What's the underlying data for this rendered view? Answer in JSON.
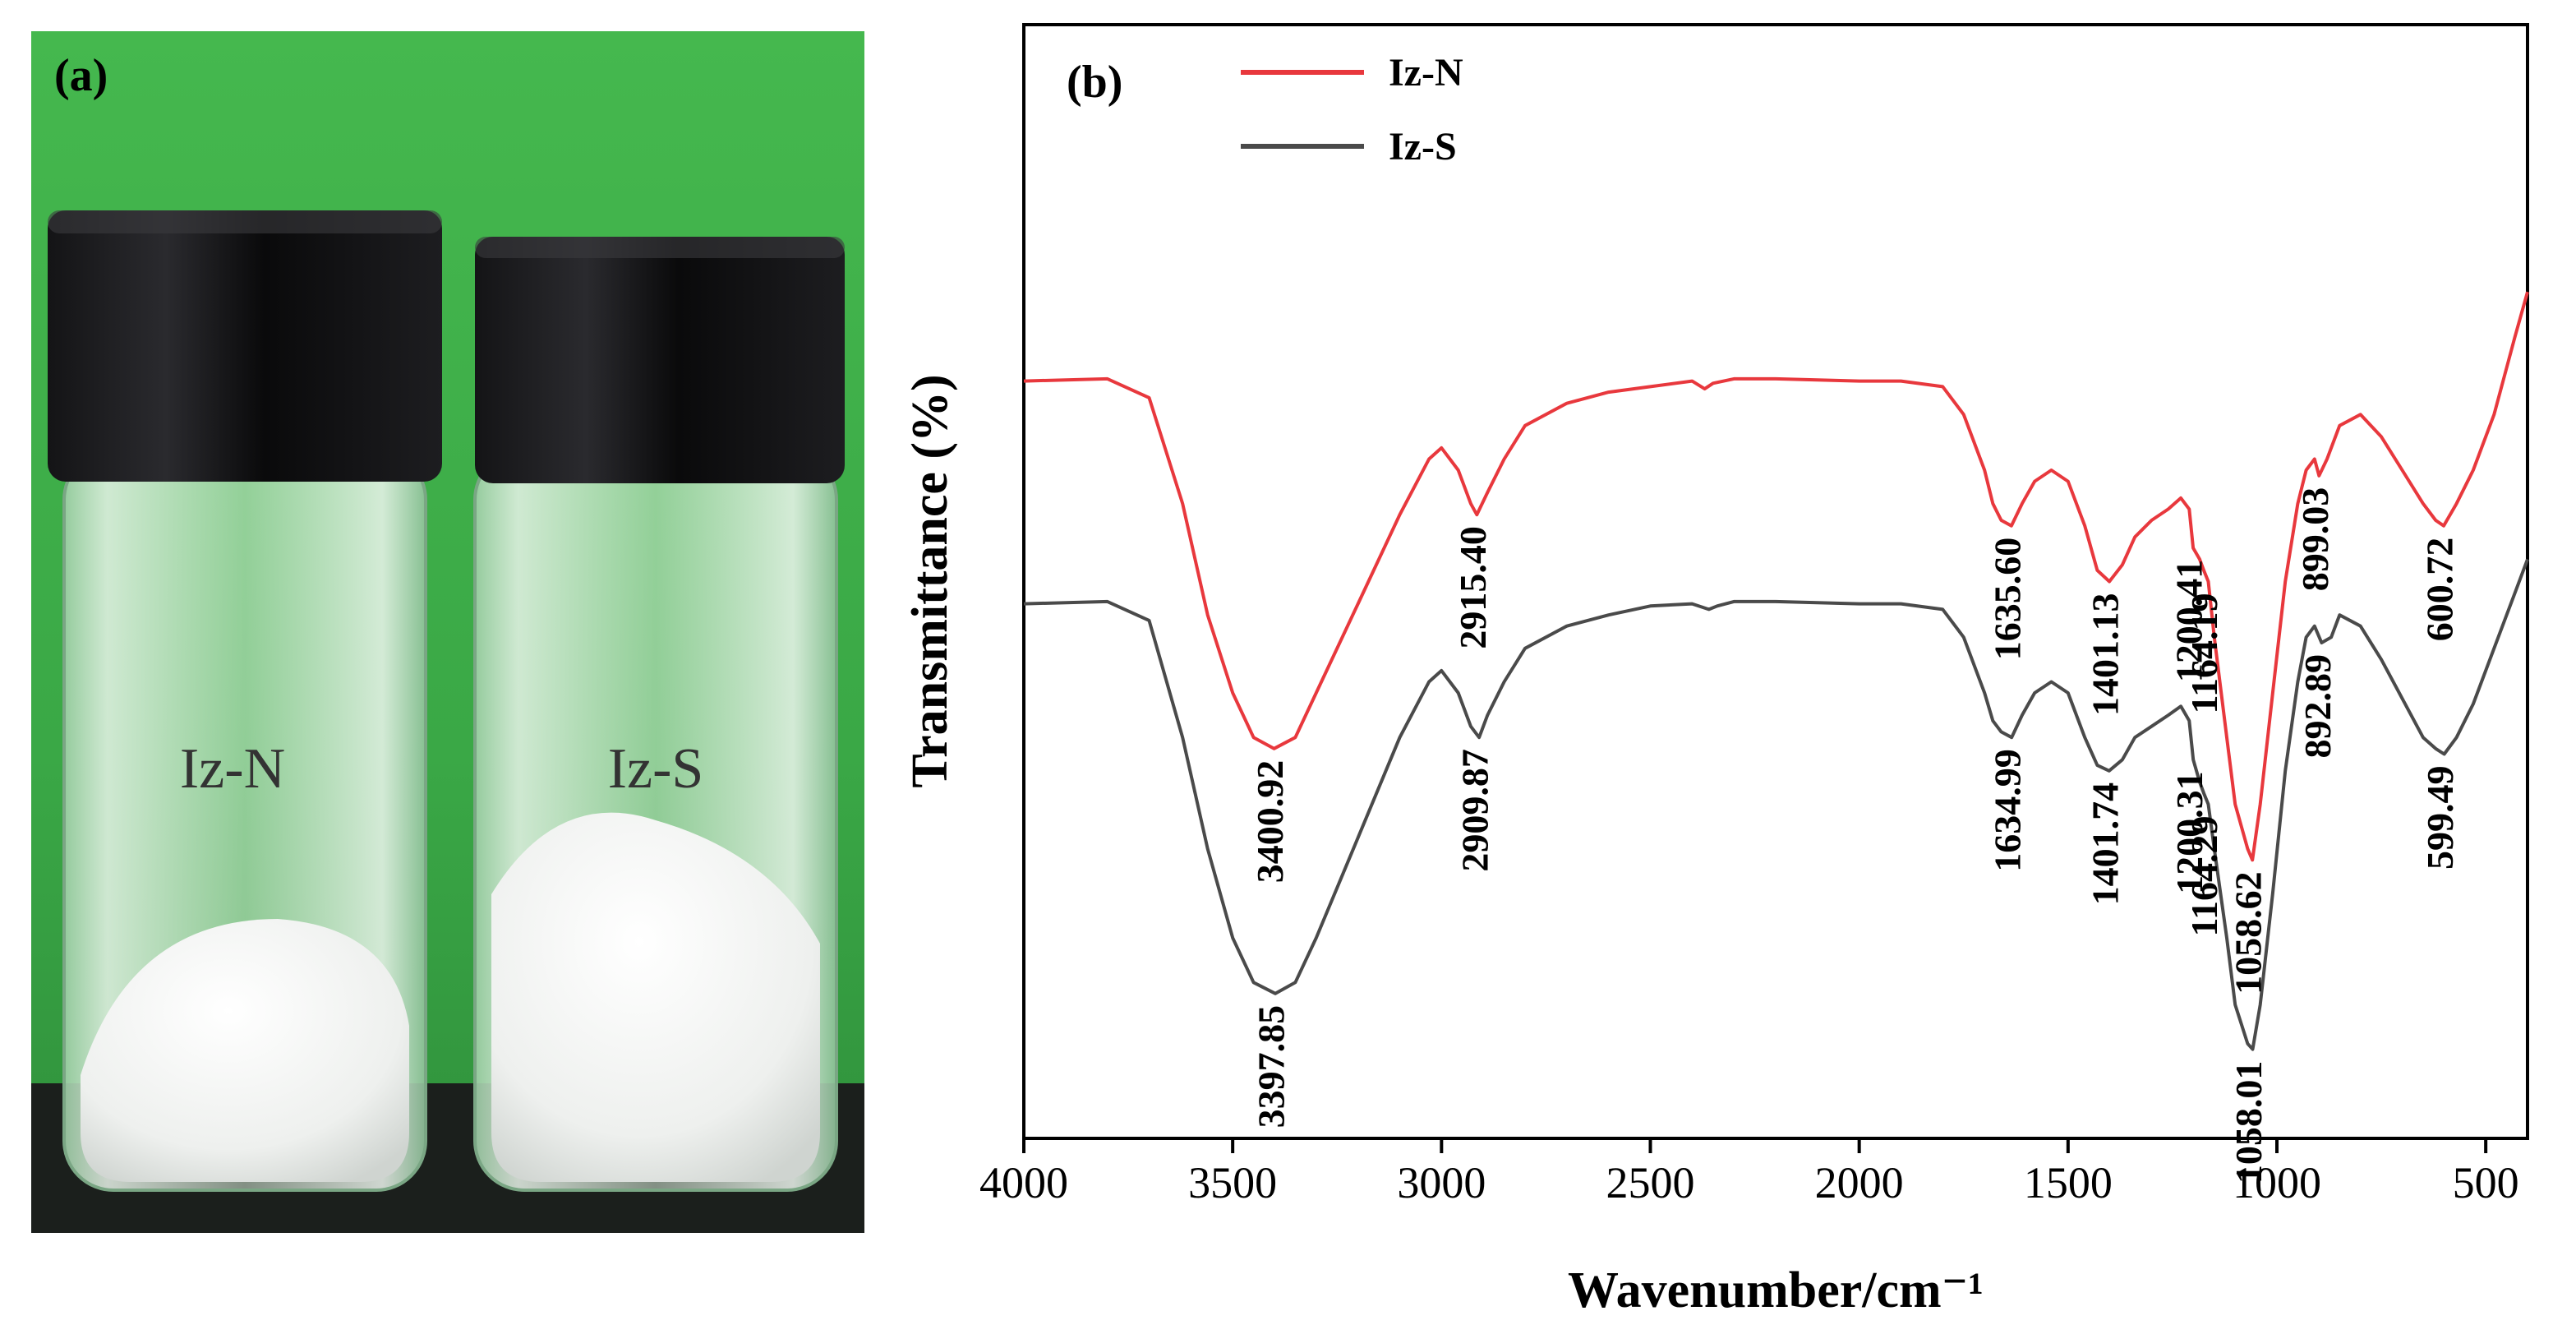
{
  "panel_a": {
    "label": "(a)",
    "vial_left_label": "Iz-N",
    "vial_right_label": "Iz-S",
    "colors": {
      "background": "#3dae4a",
      "cap": "#0b0b0d",
      "powder": "#f4f5f3",
      "base": "#1b1f1c"
    }
  },
  "panel_b": {
    "label": "(b)"
  },
  "chart_data": {
    "type": "line",
    "xlabel": "Wavenumber/cm⁻¹",
    "ylabel": "Transmittance (%)",
    "xlim": [
      4000,
      400
    ],
    "x_ticks": [
      4000,
      3500,
      3000,
      2500,
      2000,
      1500,
      1000,
      500
    ],
    "y_ticks_shown": false,
    "legend_position": "top-left",
    "series": [
      {
        "name": "Iz-N",
        "color": "#e8383d",
        "points": [
          [
            4000,
            68
          ],
          [
            3800,
            68.2
          ],
          [
            3700,
            66.5
          ],
          [
            3620,
            57
          ],
          [
            3560,
            47
          ],
          [
            3500,
            40
          ],
          [
            3450,
            36
          ],
          [
            3400.92,
            35
          ],
          [
            3350,
            36
          ],
          [
            3300,
            40
          ],
          [
            3200,
            48
          ],
          [
            3100,
            56
          ],
          [
            3030,
            61
          ],
          [
            3000,
            62
          ],
          [
            2960,
            60
          ],
          [
            2930,
            57
          ],
          [
            2915.4,
            56
          ],
          [
            2890,
            58
          ],
          [
            2850,
            61
          ],
          [
            2800,
            64
          ],
          [
            2700,
            66
          ],
          [
            2600,
            67
          ],
          [
            2500,
            67.5
          ],
          [
            2400,
            68
          ],
          [
            2370,
            67.3
          ],
          [
            2350,
            67.8
          ],
          [
            2300,
            68.2
          ],
          [
            2200,
            68.2
          ],
          [
            2000,
            68
          ],
          [
            1900,
            68
          ],
          [
            1800,
            67.5
          ],
          [
            1750,
            65
          ],
          [
            1700,
            60
          ],
          [
            1680,
            57
          ],
          [
            1660,
            55.5
          ],
          [
            1635.6,
            55
          ],
          [
            1610,
            57
          ],
          [
            1580,
            59
          ],
          [
            1540,
            60
          ],
          [
            1500,
            59
          ],
          [
            1460,
            55
          ],
          [
            1430,
            51
          ],
          [
            1401.13,
            50
          ],
          [
            1370,
            51.5
          ],
          [
            1340,
            54
          ],
          [
            1300,
            55.5
          ],
          [
            1260,
            56.5
          ],
          [
            1230,
            57.5
          ],
          [
            1210,
            56.5
          ],
          [
            1200.41,
            53
          ],
          [
            1185,
            52
          ],
          [
            1175,
            51
          ],
          [
            1164.19,
            50
          ],
          [
            1150,
            45
          ],
          [
            1120,
            36
          ],
          [
            1100,
            30
          ],
          [
            1070,
            26
          ],
          [
            1058.62,
            25
          ],
          [
            1040,
            30
          ],
          [
            1010,
            40
          ],
          [
            980,
            50
          ],
          [
            950,
            57
          ],
          [
            930,
            60
          ],
          [
            910,
            61
          ],
          [
            899.03,
            59.5
          ],
          [
            880,
            61
          ],
          [
            850,
            64
          ],
          [
            800,
            65
          ],
          [
            750,
            63
          ],
          [
            700,
            60
          ],
          [
            650,
            57
          ],
          [
            620,
            55.5
          ],
          [
            600.72,
            55
          ],
          [
            570,
            57
          ],
          [
            530,
            60
          ],
          [
            480,
            65
          ],
          [
            430,
            72
          ],
          [
            400,
            76
          ]
        ]
      },
      {
        "name": "Iz-S",
        "color": "#4a4a4a",
        "points": [
          [
            4000,
            48
          ],
          [
            3800,
            48.2
          ],
          [
            3700,
            46.5
          ],
          [
            3620,
            36
          ],
          [
            3560,
            26
          ],
          [
            3500,
            18
          ],
          [
            3450,
            14
          ],
          [
            3397.85,
            13
          ],
          [
            3350,
            14
          ],
          [
            3300,
            18
          ],
          [
            3200,
            27
          ],
          [
            3100,
            36
          ],
          [
            3030,
            41
          ],
          [
            3000,
            42
          ],
          [
            2960,
            40
          ],
          [
            2930,
            37
          ],
          [
            2909.87,
            36
          ],
          [
            2890,
            38
          ],
          [
            2850,
            41
          ],
          [
            2800,
            44
          ],
          [
            2700,
            46
          ],
          [
            2600,
            47
          ],
          [
            2500,
            47.8
          ],
          [
            2400,
            48
          ],
          [
            2360,
            47.5
          ],
          [
            2340,
            47.8
          ],
          [
            2300,
            48.2
          ],
          [
            2200,
            48.2
          ],
          [
            2000,
            48
          ],
          [
            1900,
            48
          ],
          [
            1800,
            47.5
          ],
          [
            1750,
            45
          ],
          [
            1700,
            40
          ],
          [
            1680,
            37.5
          ],
          [
            1660,
            36.5
          ],
          [
            1634.99,
            36
          ],
          [
            1610,
            38
          ],
          [
            1580,
            40
          ],
          [
            1540,
            41
          ],
          [
            1500,
            40
          ],
          [
            1460,
            36
          ],
          [
            1430,
            33.5
          ],
          [
            1401.74,
            33
          ],
          [
            1370,
            34
          ],
          [
            1340,
            36
          ],
          [
            1300,
            37
          ],
          [
            1260,
            38
          ],
          [
            1230,
            38.8
          ],
          [
            1210,
            37.5
          ],
          [
            1200.31,
            34
          ],
          [
            1185,
            32
          ],
          [
            1175,
            31
          ],
          [
            1164.29,
            30
          ],
          [
            1150,
            26
          ],
          [
            1120,
            18
          ],
          [
            1100,
            12
          ],
          [
            1070,
            8.5
          ],
          [
            1058.01,
            8
          ],
          [
            1040,
            12
          ],
          [
            1010,
            22
          ],
          [
            980,
            33
          ],
          [
            950,
            41
          ],
          [
            930,
            45
          ],
          [
            910,
            46
          ],
          [
            892.89,
            44.5
          ],
          [
            870,
            45
          ],
          [
            850,
            47
          ],
          [
            800,
            46
          ],
          [
            750,
            43
          ],
          [
            700,
            39.5
          ],
          [
            650,
            36
          ],
          [
            620,
            35
          ],
          [
            599.49,
            34.5
          ],
          [
            570,
            36
          ],
          [
            530,
            39
          ],
          [
            480,
            44
          ],
          [
            430,
            49
          ],
          [
            400,
            52
          ]
        ]
      }
    ],
    "annotations": [
      {
        "series": "Iz-N",
        "text": "3400.92",
        "x": 3400.92,
        "y": 35
      },
      {
        "series": "Iz-N",
        "text": "2915.40",
        "x": 2915.4,
        "y": 56
      },
      {
        "series": "Iz-N",
        "text": "1635.60",
        "x": 1635.6,
        "y": 55
      },
      {
        "series": "Iz-N",
        "text": "1401.13",
        "x": 1401.13,
        "y": 50
      },
      {
        "series": "Iz-N",
        "text": "1200.41",
        "x": 1200.41,
        "y": 53
      },
      {
        "series": "Iz-N",
        "text": "1164.19",
        "x": 1164.19,
        "y": 50
      },
      {
        "series": "Iz-N",
        "text": "1058.62",
        "x": 1058.62,
        "y": 25
      },
      {
        "series": "Iz-N",
        "text": "899.03",
        "x": 899.03,
        "y": 59.5
      },
      {
        "series": "Iz-N",
        "text": "600.72",
        "x": 600.72,
        "y": 55
      },
      {
        "series": "Iz-S",
        "text": "3397.85",
        "x": 3397.85,
        "y": 13
      },
      {
        "series": "Iz-S",
        "text": "2909.87",
        "x": 2909.87,
        "y": 36
      },
      {
        "series": "Iz-S",
        "text": "1634.99",
        "x": 1634.99,
        "y": 36
      },
      {
        "series": "Iz-S",
        "text": "1401.74",
        "x": 1401.74,
        "y": 33
      },
      {
        "series": "Iz-S",
        "text": "1200.31",
        "x": 1200.31,
        "y": 34
      },
      {
        "series": "Iz-S",
        "text": "1164.29",
        "x": 1164.29,
        "y": 30
      },
      {
        "series": "Iz-S",
        "text": "1058.01",
        "x": 1058.01,
        "y": 8
      },
      {
        "series": "Iz-S",
        "text": "892.89",
        "x": 892.89,
        "y": 44.5
      },
      {
        "series": "Iz-S",
        "text": "599.49",
        "x": 599.49,
        "y": 34.5
      }
    ]
  }
}
